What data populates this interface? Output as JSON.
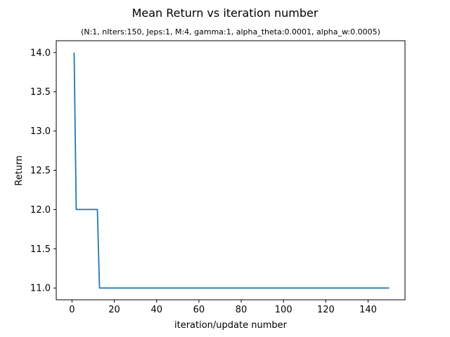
{
  "chart_data": {
    "type": "line",
    "title": "Mean Return vs iteration number",
    "subtitle": "(N:1, nIters:150, Jeps:1, M:4, gamma:1, alpha_theta:0.0001, alpha_w:0.0005)",
    "xlabel": "iteration/update number",
    "ylabel": "Return",
    "xlim": [
      -7.45,
      157.45
    ],
    "ylim": [
      10.85,
      14.15
    ],
    "xticks": [
      0,
      20,
      40,
      60,
      80,
      100,
      120,
      140
    ],
    "yticks": [
      11.0,
      11.5,
      12.0,
      12.5,
      13.0,
      13.5,
      14.0
    ],
    "ytick_labels": [
      "11.0",
      "11.5",
      "12.0",
      "12.5",
      "13.0",
      "13.5",
      "14.0"
    ],
    "grid": false,
    "line_color": "#1f77b4",
    "series": [
      {
        "x": [
          1,
          2,
          3,
          12,
          13,
          14,
          150
        ],
        "y": [
          14,
          12,
          12,
          12,
          11,
          11,
          11
        ]
      }
    ]
  }
}
